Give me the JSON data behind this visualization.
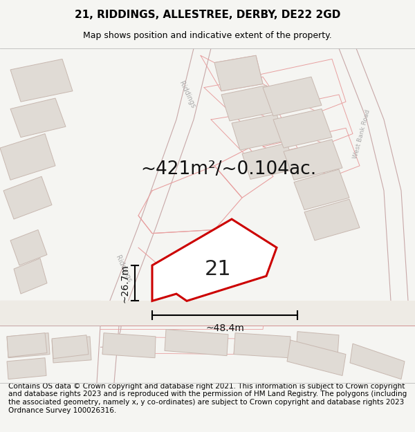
{
  "title_line1": "21, RIDDINGS, ALLESTREE, DERBY, DE22 2GD",
  "title_line2": "Map shows position and indicative extent of the property.",
  "area_text": "~421m²/~0.104ac.",
  "label_number": "21",
  "dim_width": "~48.4m",
  "dim_height": "~26.7m",
  "footer_text": "Contains OS data © Crown copyright and database right 2021. This information is subject to Crown copyright and database rights 2023 and is reproduced with the permission of HM Land Registry. The polygons (including the associated geometry, namely x, y co-ordinates) are subject to Crown copyright and database rights 2023 Ordnance Survey 100026316.",
  "bg_color": "#f5f5f2",
  "map_bg_color": "#f7f5f2",
  "road_color": "#e8e0d8",
  "building_fill": "#e0dbd5",
  "building_edge": "#c8b8b0",
  "plot_outline_color": "#cc0000",
  "other_outline_color": "#e8a0a0",
  "road_outline_color": "#d09090",
  "title_fontsize": 11,
  "subtitle_fontsize": 9,
  "area_fontsize": 19,
  "label_fontsize": 22,
  "dim_fontsize": 10,
  "footer_fontsize": 7.5,
  "road_label_color": "#aaaaaa",
  "road_label_size": 7
}
